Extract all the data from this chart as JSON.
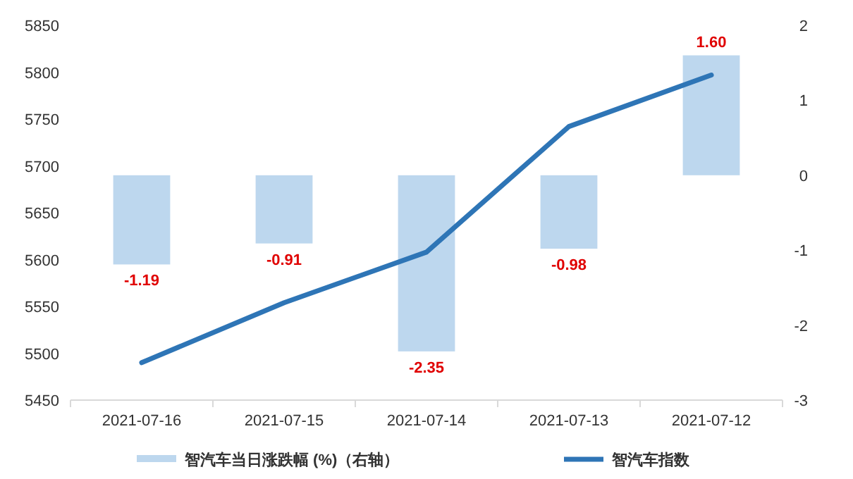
{
  "chart_data": {
    "type": "bar",
    "categories": [
      "2021-07-16",
      "2021-07-15",
      "2021-07-14",
      "2021-07-13",
      "2021-07-12"
    ],
    "series": [
      {
        "name": "智汽车当日涨跌幅 (%)（右轴）",
        "axis": "y2",
        "color": "#bdd7ee",
        "values": [
          -1.19,
          -0.91,
          -2.35,
          -0.98,
          1.6
        ],
        "value_labels": [
          "-1.19",
          "-0.91",
          "-2.35",
          "-0.98",
          "1.60"
        ]
      },
      {
        "name": "智汽车指数",
        "type": "line",
        "color": "#2e75b6",
        "values": [
          5490,
          5554,
          5608,
          5742,
          5797
        ]
      }
    ],
    "ylim": [
      5450,
      5850
    ],
    "yticks": [
      5450,
      5500,
      5550,
      5600,
      5650,
      5700,
      5750,
      5800,
      5850
    ],
    "y2lim": [
      -3,
      2
    ],
    "y2ticks": [
      -3,
      -2,
      -1,
      0,
      1,
      2
    ],
    "grid": false,
    "legend": "bottom",
    "marker": "none",
    "line_style": "solid"
  }
}
